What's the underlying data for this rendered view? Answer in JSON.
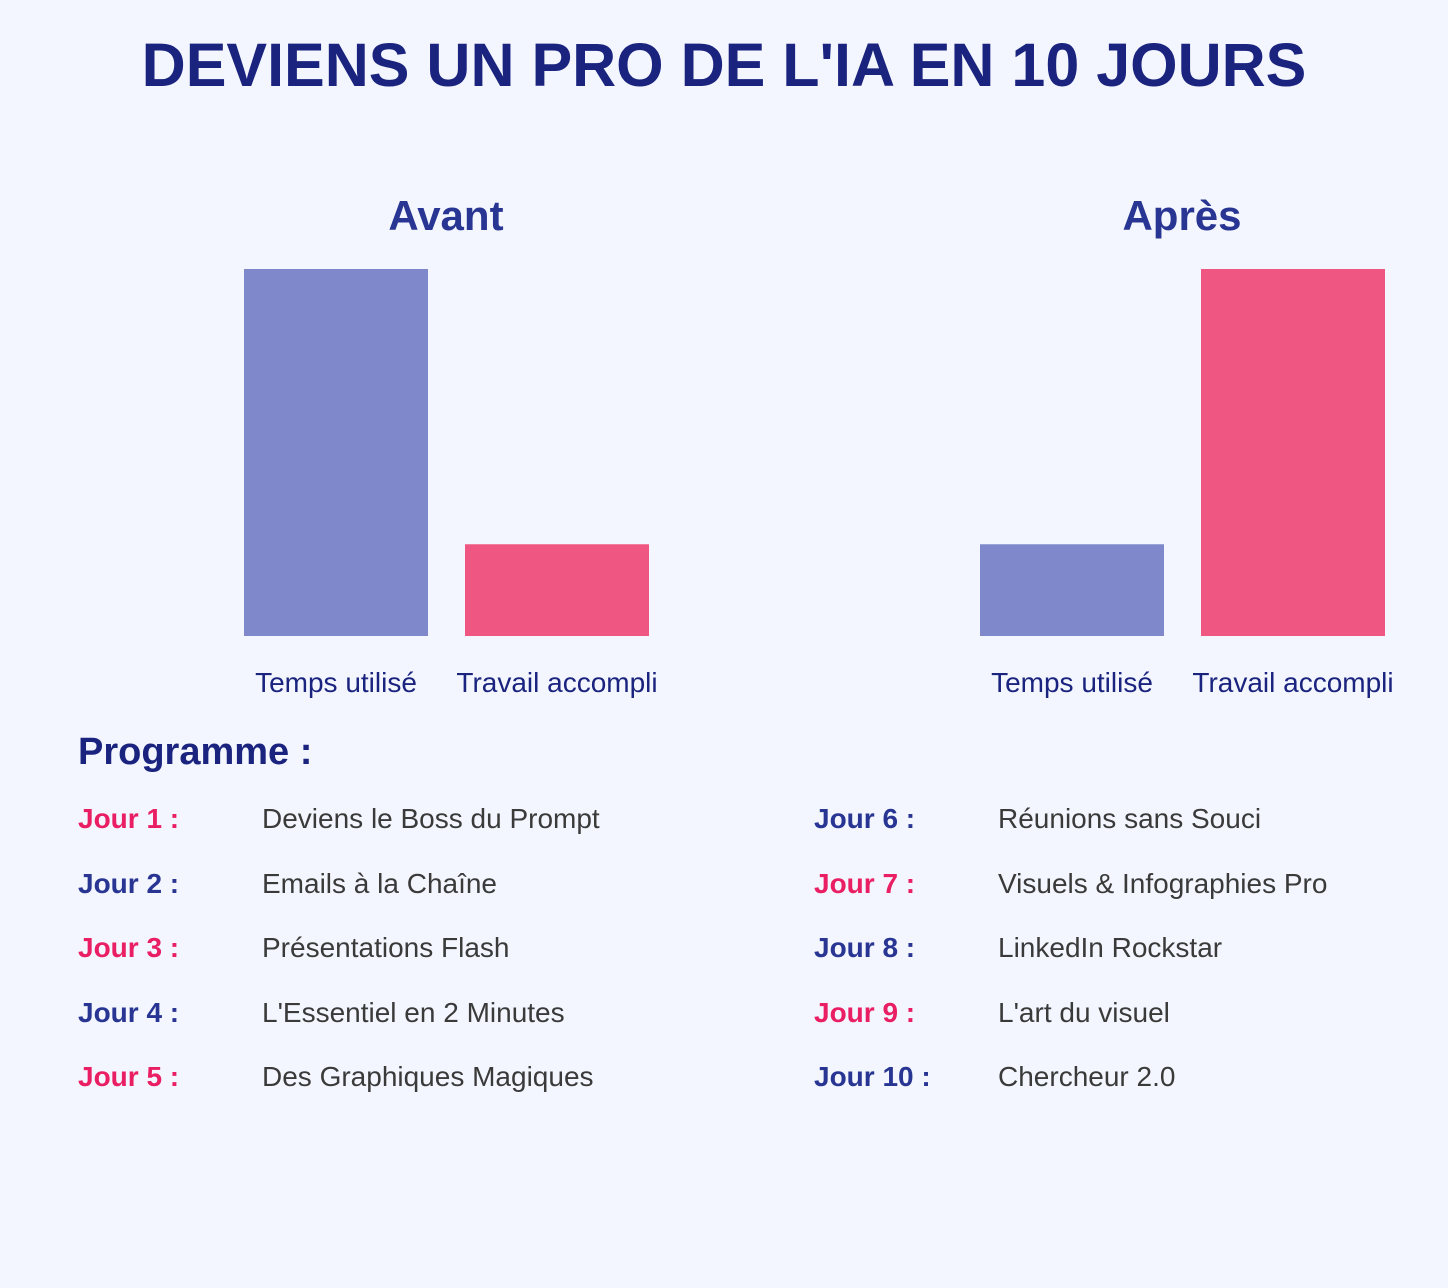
{
  "title": "DEVIENS UN PRO DE L'IA EN 10 JOURS",
  "colors": {
    "title": "#1a237e",
    "subtitle": "#283593",
    "bar_time": "#7e88cb",
    "bar_work": "#ef5682",
    "day_pink": "#e91e63",
    "day_blue": "#283593",
    "topic_text": "#3a3a3a",
    "background": "#f3f6fe"
  },
  "chart_data": [
    {
      "type": "bar",
      "title": "Avant",
      "categories": [
        "Temps utilisé",
        "Travail accompli"
      ],
      "values": [
        100,
        25
      ],
      "ylim": [
        0,
        100
      ],
      "grid": false,
      "bar_colors": [
        "#7e88cb",
        "#ef5682"
      ]
    },
    {
      "type": "bar",
      "title": "Après",
      "categories": [
        "Temps utilisé",
        "Travail accompli"
      ],
      "values": [
        25,
        100
      ],
      "ylim": [
        0,
        100
      ],
      "grid": false,
      "bar_colors": [
        "#7e88cb",
        "#ef5682"
      ]
    }
  ],
  "program": {
    "heading": "Programme :",
    "days": [
      {
        "label": "Jour 1 :",
        "topic": "Deviens le Boss du Prompt",
        "color": "#e91e63"
      },
      {
        "label": "Jour 2 :",
        "topic": "Emails à la Chaîne",
        "color": "#283593"
      },
      {
        "label": "Jour 3 :",
        "topic": "Présentations Flash",
        "color": "#e91e63"
      },
      {
        "label": "Jour 4 :",
        "topic": "L'Essentiel en 2 Minutes",
        "color": "#283593"
      },
      {
        "label": "Jour 5 :",
        "topic": "Des Graphiques Magiques",
        "color": "#e91e63"
      },
      {
        "label": "Jour 6 :",
        "topic": "Réunions sans Souci",
        "color": "#283593"
      },
      {
        "label": "Jour 7 :",
        "topic": "Visuels & Infographies Pro",
        "color": "#e91e63"
      },
      {
        "label": "Jour 8 :",
        "topic": "LinkedIn Rockstar",
        "color": "#283593"
      },
      {
        "label": "Jour 9 :",
        "topic": "L'art du visuel",
        "color": "#e91e63"
      },
      {
        "label": "Jour 10 :",
        "topic": "Chercheur 2.0",
        "color": "#283593"
      }
    ]
  }
}
